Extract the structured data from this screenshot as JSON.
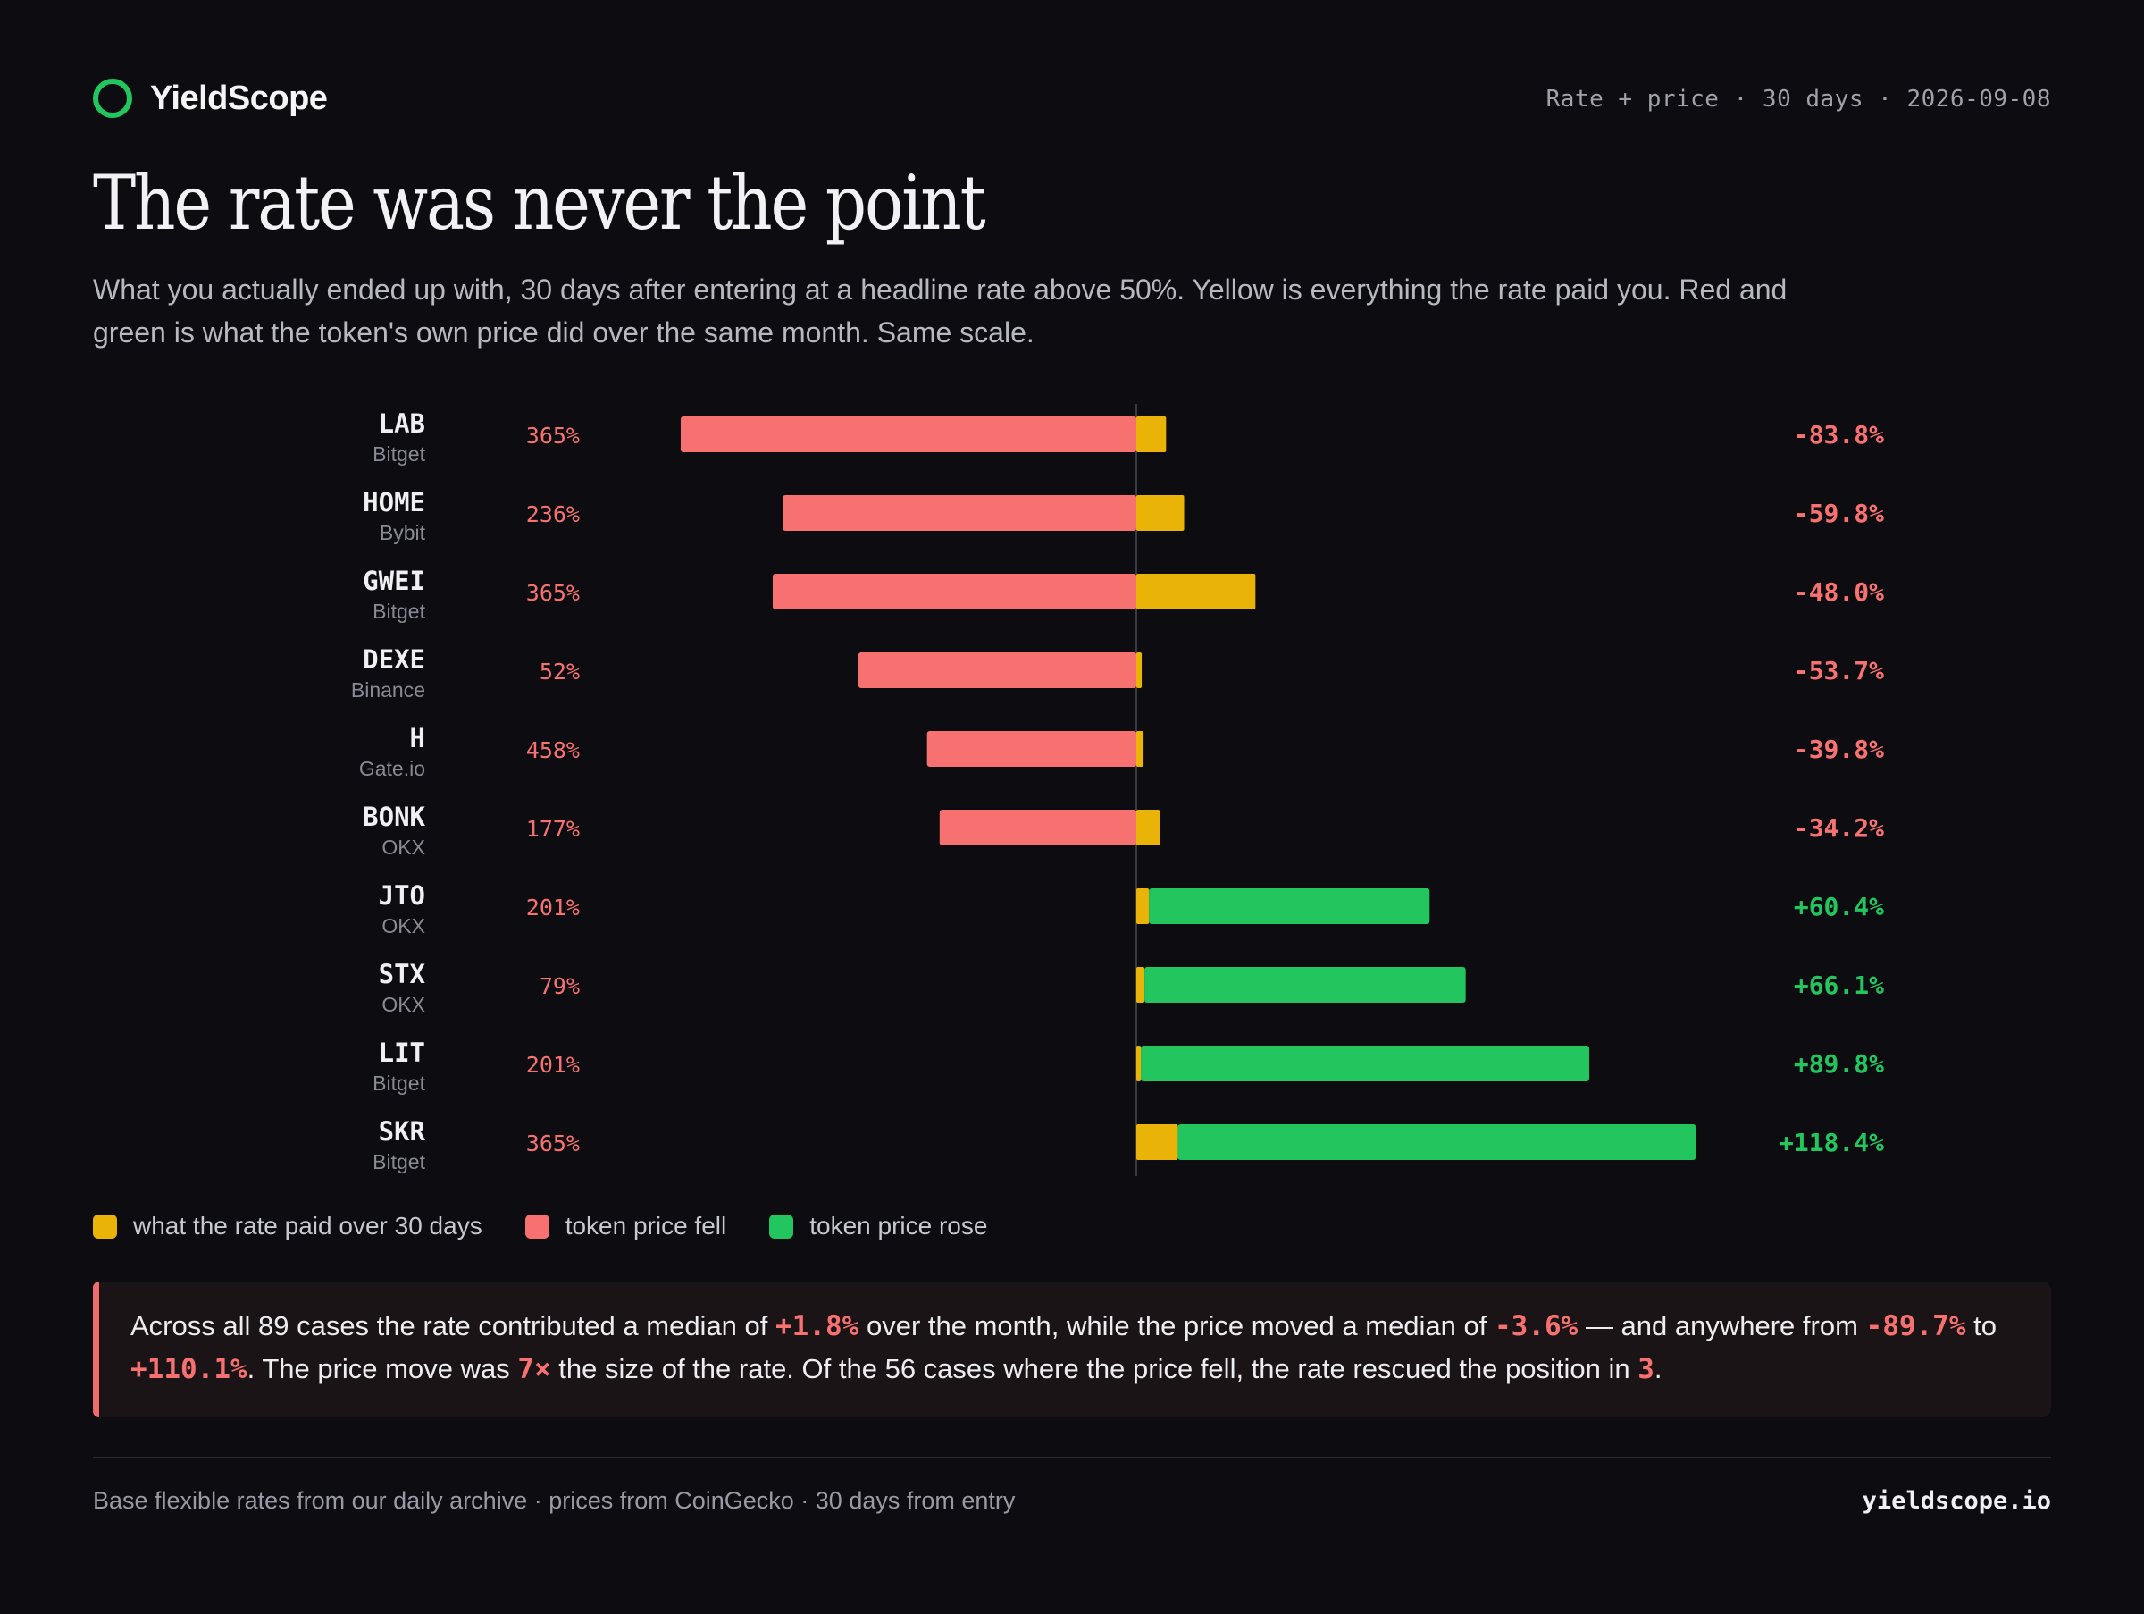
{
  "brand": {
    "name": "YieldScope"
  },
  "header": {
    "meta": "Rate + price · 30 days · 2026-09-08"
  },
  "title": "The rate was never the point",
  "subtitle": "What you actually ended up with, 30 days after entering at a headline rate above 50%. Yellow is everything the rate paid you. Red and green is what the token's own price did over the same month. Same scale.",
  "colors": {
    "rate": "#eab308",
    "fell": "#f87171",
    "rose": "#22c55e",
    "accent_ring": "#22c55e"
  },
  "chart_data": {
    "type": "bar",
    "orientation": "horizontal-diverging",
    "unit": "percent",
    "rows": [
      {
        "token": "LAB",
        "exchange": "Bitget",
        "rate_label": "365%",
        "rate_contrib": 3.3,
        "price_change": -50.5,
        "result_label": "-83.8%"
      },
      {
        "token": "HOME",
        "exchange": "Bybit",
        "rate_label": "236%",
        "rate_contrib": 5.3,
        "price_change": -39.2,
        "result_label": "-59.8%"
      },
      {
        "token": "GWEI",
        "exchange": "Bitget",
        "rate_label": "365%",
        "rate_contrib": 13.2,
        "price_change": -40.3,
        "result_label": "-48.0%"
      },
      {
        "token": "DEXE",
        "exchange": "Binance",
        "rate_label": "52%",
        "rate_contrib": 0.6,
        "price_change": -30.8,
        "result_label": "-53.7%"
      },
      {
        "token": "H",
        "exchange": "Gate.io",
        "rate_label": "458%",
        "rate_contrib": 0.8,
        "price_change": -23.2,
        "result_label": "-39.8%"
      },
      {
        "token": "BONK",
        "exchange": "OKX",
        "rate_label": "177%",
        "rate_contrib": 2.6,
        "price_change": -21.8,
        "result_label": "-34.2%"
      },
      {
        "token": "JTO",
        "exchange": "OKX",
        "rate_label": "201%",
        "rate_contrib": 1.4,
        "price_change": 31.1,
        "result_label": "+60.4%"
      },
      {
        "token": "STX",
        "exchange": "OKX",
        "rate_label": "79%",
        "rate_contrib": 0.9,
        "price_change": 35.6,
        "result_label": "+66.1%"
      },
      {
        "token": "LIT",
        "exchange": "Bitget",
        "rate_label": "201%",
        "rate_contrib": 0.5,
        "price_change": 49.7,
        "result_label": "+89.8%"
      },
      {
        "token": "SKR",
        "exchange": "Bitget",
        "rate_label": "365%",
        "rate_contrib": 4.6,
        "price_change": 57.4,
        "result_label": "+118.4%"
      }
    ]
  },
  "legend": {
    "rate": "what the rate paid over 30 days",
    "fell": "token price fell",
    "rose": "token price rose"
  },
  "callout": {
    "t1": "Across all 89 cases the rate contributed a median of ",
    "v1": "+1.8%",
    "t2": " over the month, while the price moved a median of ",
    "v2": "-3.6%",
    "t3": " — and anywhere from ",
    "v3": "-89.7%",
    "t4": " to ",
    "v4": "+110.1%",
    "t5": ". The price move was ",
    "v5": "7×",
    "t6": " the size of the rate. Of the 56 cases where the price fell, the rate rescued the position in ",
    "v6": "3",
    "t7": "."
  },
  "footer": {
    "sources": "Base flexible rates from our daily archive · prices from CoinGecko · 30 days from entry",
    "site": "yieldscope.io"
  }
}
